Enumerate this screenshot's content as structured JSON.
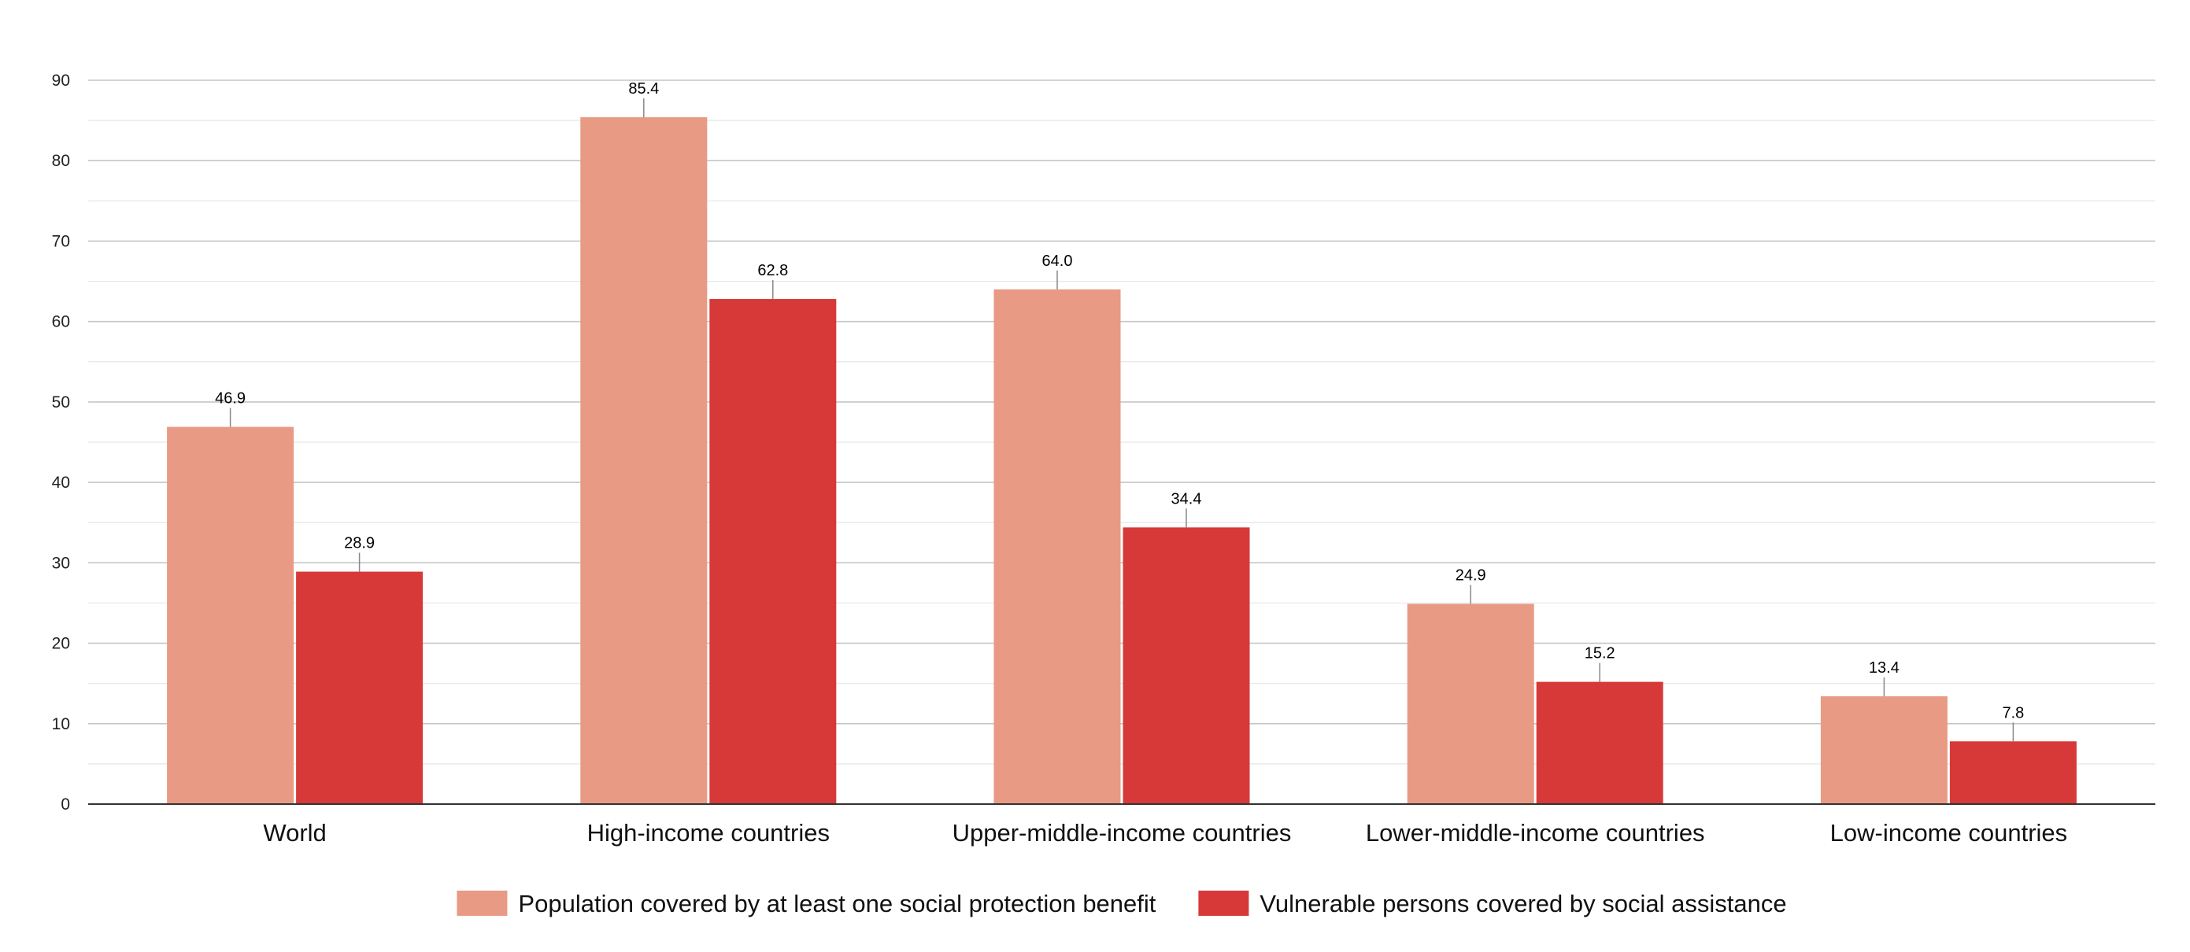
{
  "chart_data": {
    "type": "bar",
    "title": "",
    "xlabel": "",
    "ylabel": "",
    "ylim": [
      0,
      90
    ],
    "y_ticks": [
      "0",
      "10",
      "20",
      "30",
      "40",
      "50",
      "60",
      "70",
      "80",
      "90"
    ],
    "grid": true,
    "minor_grid": true,
    "legend_position": "bottom-center",
    "categories": [
      "World",
      "High-income countries",
      "Upper-middle-income countries",
      "Lower-middle-income countries",
      "Low-income countries"
    ],
    "series": [
      {
        "name": "Population covered by at least one social protection benefit",
        "color": "#e89a84",
        "values": [
          46.9,
          85.4,
          64.0,
          24.9,
          13.4
        ],
        "labels": [
          "46.9",
          "85.4",
          "64.0",
          "24.9",
          "13.4"
        ]
      },
      {
        "name": "Vulnerable persons covered by social assistance",
        "color": "#d73838",
        "values": [
          28.9,
          62.8,
          34.4,
          15.2,
          7.8
        ],
        "labels": [
          "28.9",
          "62.8",
          "34.4",
          "15.2",
          "7.8"
        ]
      }
    ]
  }
}
